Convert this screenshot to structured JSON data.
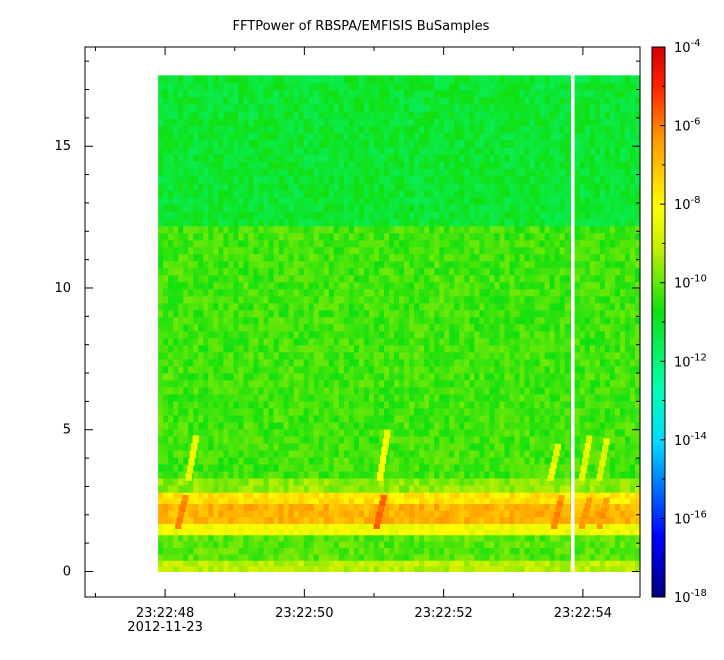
{
  "chart_data": {
    "type": "heatmap",
    "title": "FFTPower of RBSPA/EMFISIS  BuSamples",
    "xlabel": "",
    "ylabel": "",
    "x_ticks": [
      {
        "value": "23:22:48",
        "label": "23:22:48",
        "sublabel": "2012-11-23"
      },
      {
        "value": "23:22:50",
        "label": "23:22:50"
      },
      {
        "value": "23:22:52",
        "label": "23:22:52"
      },
      {
        "value": "23:22:54",
        "label": "23:22:54"
      }
    ],
    "y_ticks": [
      0,
      5,
      10,
      15
    ],
    "ylim": [
      -0.9,
      18.5
    ],
    "xlim_seconds_after_23_22_46": [
      0.85,
      8.82
    ],
    "data_x_range_seconds_after_23_22_46": [
      1.9,
      8.82
    ],
    "data_y_range": [
      0,
      17.5
    ],
    "data_gap_seconds_after_23_22_46": [
      7.83,
      7.88
    ],
    "colorbar": {
      "scale": "log",
      "range": [
        1e-18,
        0.0001
      ],
      "ticks": [
        {
          "value": -4,
          "label": "10",
          "exp": "-4"
        },
        {
          "value": -6,
          "label": "10",
          "exp": "-6"
        },
        {
          "value": -8,
          "label": "10",
          "exp": "-8"
        },
        {
          "value": -10,
          "label": "10",
          "exp": "-10"
        },
        {
          "value": -12,
          "label": "10",
          "exp": "-12"
        },
        {
          "value": -14,
          "label": "10",
          "exp": "-14"
        },
        {
          "value": -16,
          "label": "10",
          "exp": "-16"
        },
        {
          "value": -18,
          "label": "10",
          "exp": "-18"
        }
      ]
    },
    "bands": [
      {
        "y0": 0,
        "y1": 0.4,
        "log_power": -9.2
      },
      {
        "y0": 0.4,
        "y1": 1.3,
        "log_power": -10.1
      },
      {
        "y0": 1.3,
        "y1": 1.7,
        "log_power": -8.3
      },
      {
        "y0": 1.7,
        "y1": 2.4,
        "log_power": -6.8
      },
      {
        "y0": 2.4,
        "y1": 2.8,
        "log_power": -7.6
      },
      {
        "y0": 2.8,
        "y1": 3.3,
        "log_power": -9.6
      },
      {
        "y0": 3.3,
        "y1": 12.2,
        "log_power": -10.3
      },
      {
        "y0": 12.2,
        "y1": 17.5,
        "log_power": -11.1
      }
    ],
    "chorus_elements": [
      {
        "x": 2.25,
        "y0": 1.5,
        "y1": 2.7,
        "log_power": -6.0
      },
      {
        "x": 2.4,
        "y0": 3.2,
        "y1": 4.8,
        "log_power": -8.4
      },
      {
        "x": 5.1,
        "y0": 1.5,
        "y1": 2.7,
        "log_power": -5.8
      },
      {
        "x": 5.15,
        "y0": 3.2,
        "y1": 5.0,
        "log_power": -8.2
      },
      {
        "x": 7.65,
        "y0": 1.5,
        "y1": 2.7,
        "log_power": -6.2
      },
      {
        "x": 7.6,
        "y0": 3.2,
        "y1": 4.5,
        "log_power": -8.6
      },
      {
        "x": 8.05,
        "y0": 1.5,
        "y1": 2.6,
        "log_power": -6.3
      },
      {
        "x": 8.05,
        "y0": 3.2,
        "y1": 4.8,
        "log_power": -8.6
      },
      {
        "x": 8.3,
        "y0": 1.5,
        "y1": 2.6,
        "log_power": -6.4
      },
      {
        "x": 8.3,
        "y0": 3.2,
        "y1": 4.7,
        "log_power": -8.7
      }
    ]
  }
}
